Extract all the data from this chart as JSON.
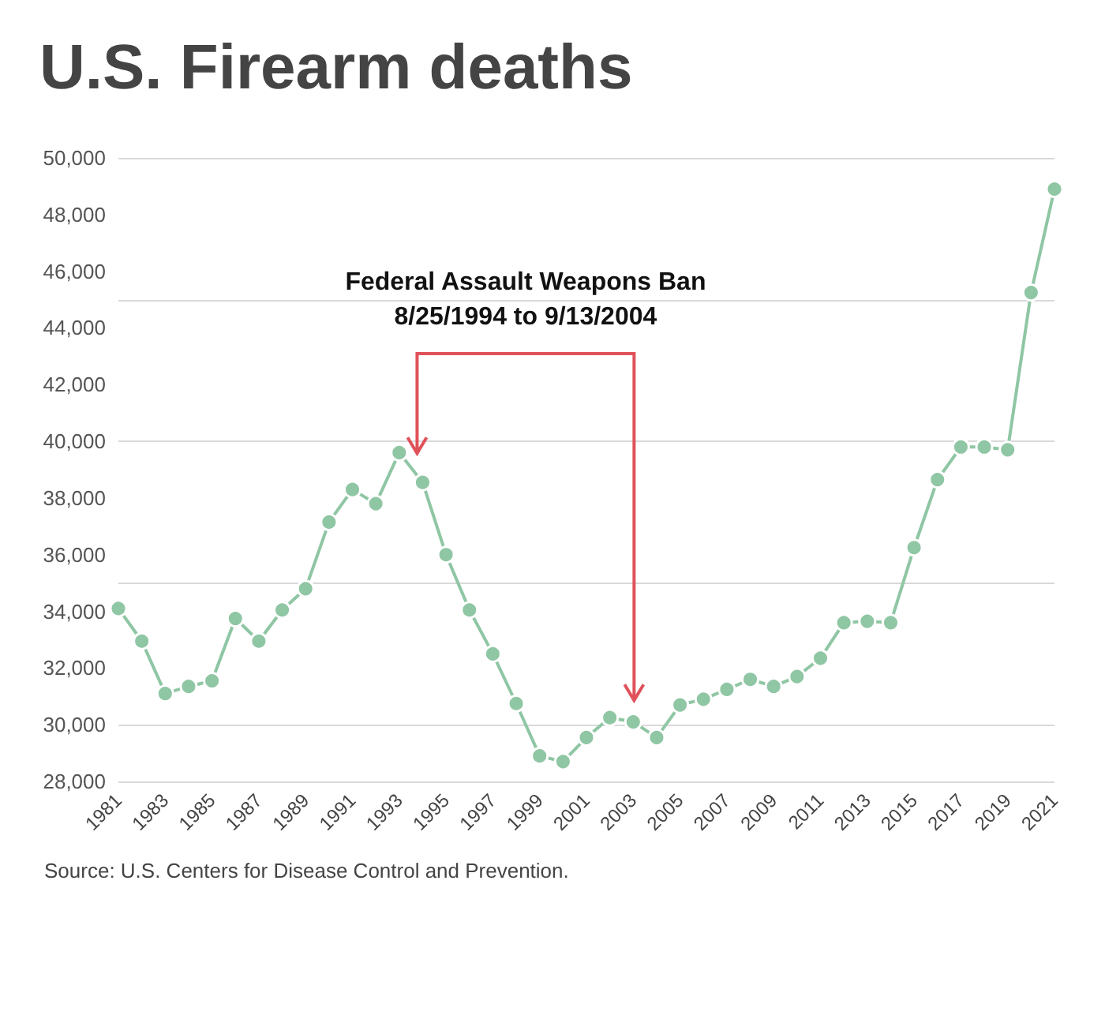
{
  "chart_data": {
    "type": "line",
    "title": "U.S. Firearm deaths",
    "x": [
      1981,
      1982,
      1983,
      1984,
      1985,
      1986,
      1987,
      1988,
      1989,
      1990,
      1991,
      1992,
      1993,
      1994,
      1995,
      1996,
      1997,
      1998,
      1999,
      2000,
      2001,
      2002,
      2003,
      2004,
      2005,
      2006,
      2007,
      2008,
      2009,
      2010,
      2011,
      2012,
      2013,
      2014,
      2015,
      2016,
      2017,
      2018,
      2019,
      2020,
      2021
    ],
    "series": [
      {
        "color": "#8fc6a4",
        "values": [
          34100,
          32950,
          31100,
          31350,
          31550,
          33750,
          32950,
          34050,
          34800,
          37150,
          38300,
          37800,
          39600,
          38550,
          36000,
          34050,
          32500,
          30750,
          28900,
          28700,
          29550,
          30250,
          30100,
          29550,
          30700,
          30900,
          31250,
          31600,
          31350,
          31700,
          32350,
          33600,
          33650,
          33600,
          36250,
          38650,
          39800,
          39800,
          39700,
          45250,
          48900
        ]
      }
    ],
    "xlim": [
      1981,
      2021
    ],
    "xticks": [
      1981,
      1983,
      1985,
      1987,
      1989,
      1991,
      1993,
      1995,
      1997,
      1999,
      2001,
      2003,
      2005,
      2007,
      2009,
      2011,
      2013,
      2015,
      2017,
      2019,
      2021
    ],
    "ylim": [
      28000,
      50000
    ],
    "yticks": [
      {
        "value": 28000,
        "label": "28,000"
      },
      {
        "value": 30000,
        "label": "30,000"
      },
      {
        "value": 32000,
        "label": "32,000"
      },
      {
        "value": 34000,
        "label": "34,000"
      },
      {
        "value": 36000,
        "label": "36,000"
      },
      {
        "value": 38000,
        "label": "38,000"
      },
      {
        "value": 40000,
        "label": "40,000"
      },
      {
        "value": 42000,
        "label": "42,000"
      },
      {
        "value": 44000,
        "label": "44,000"
      },
      {
        "value": 46000,
        "label": "46,000"
      },
      {
        "value": 48000,
        "label": "48,000"
      },
      {
        "value": 50000,
        "label": "50,000"
      }
    ],
    "grid": "y",
    "marker": "circle",
    "line_style": "solid",
    "annotations": [
      "Federal Assault Weapons Ban\n8/25/1994 to 9/13/2004",
      "Source: U.S. Centers for Disease Control and Prevention."
    ]
  }
}
